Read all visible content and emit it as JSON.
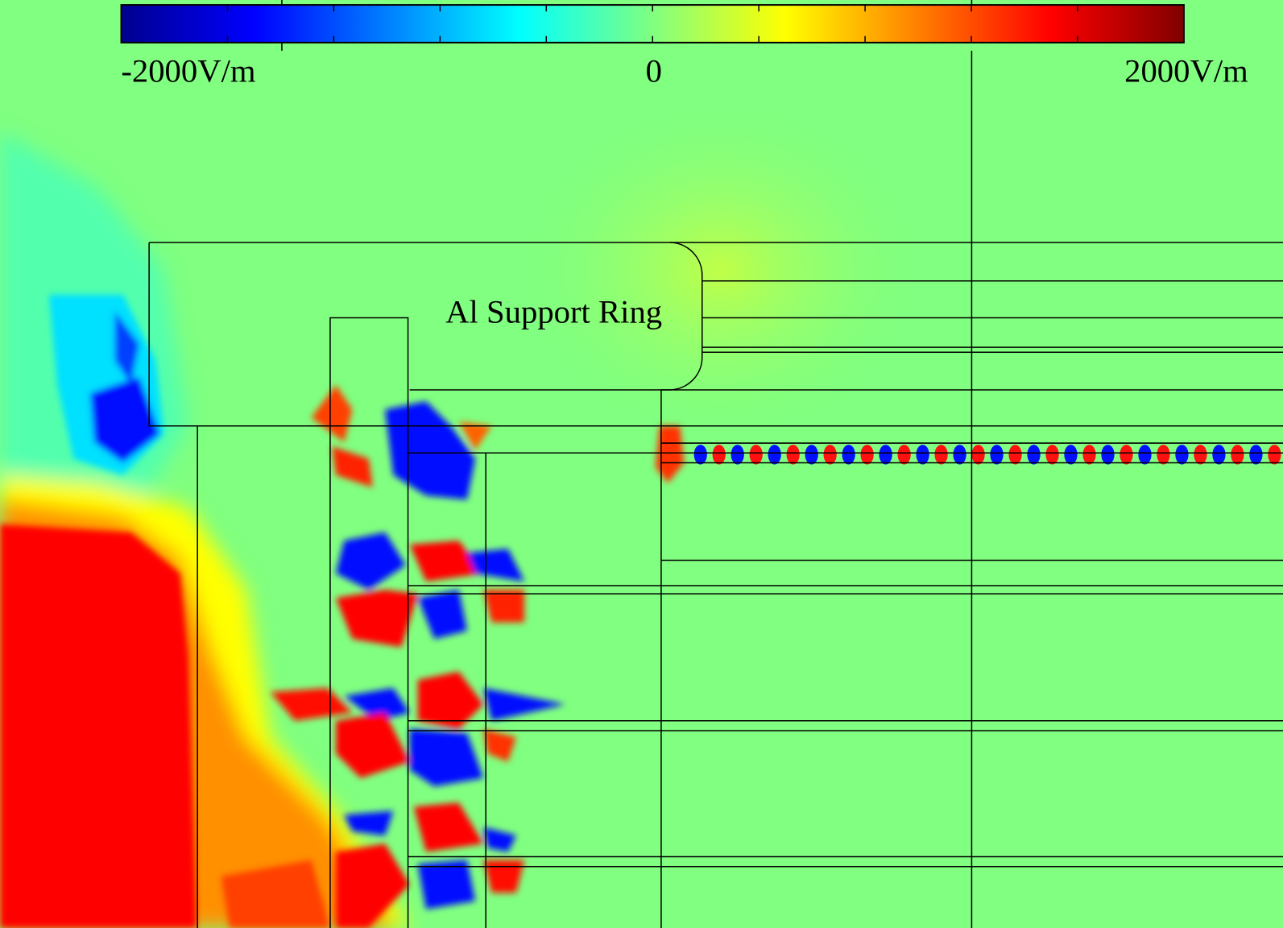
{
  "colorbar": {
    "min_label": "-2000V/m",
    "mid_label": "0",
    "max_label": "2000V/m"
  },
  "annotation": "Al Support Ring"
}
